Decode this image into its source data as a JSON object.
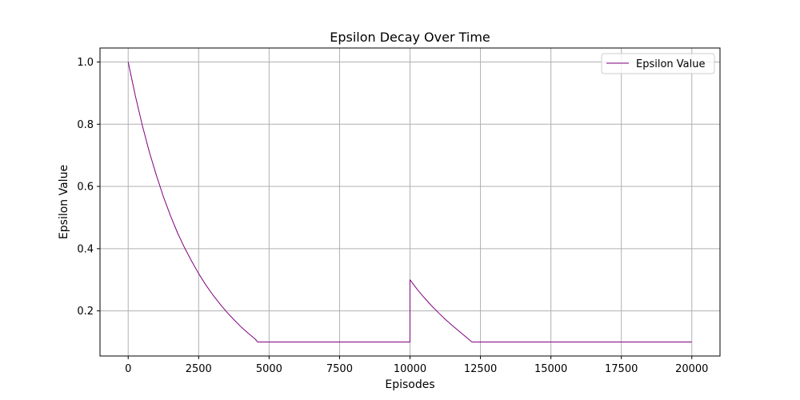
{
  "chart_data": {
    "type": "line",
    "title": "Epsilon Decay Over Time",
    "xlabel": "Episodes",
    "ylabel": "Epsilon Value",
    "xlim": [
      -1000,
      21000
    ],
    "ylim": [
      0.055,
      1.045
    ],
    "xticks": [
      0,
      2500,
      5000,
      7500,
      10000,
      12500,
      15000,
      17500,
      20000
    ],
    "yticks": [
      0.2,
      0.4,
      0.6,
      0.8,
      1.0
    ],
    "xtick_labels": [
      "0",
      "2500",
      "5000",
      "7500",
      "10000",
      "12500",
      "15000",
      "17500",
      "20000"
    ],
    "ytick_labels": [
      "0.2",
      "0.4",
      "0.6",
      "0.8",
      "1.0"
    ],
    "grid": true,
    "legend_position": "top-right",
    "series": [
      {
        "name": "Epsilon Value",
        "color": "#800080",
        "x": [
          0,
          250,
          500,
          750,
          1000,
          1250,
          1500,
          1750,
          2000,
          2250,
          2500,
          2750,
          3000,
          3250,
          3500,
          3750,
          4000,
          4250,
          4500,
          4600,
          5000,
          7500,
          9999,
          10000,
          10250,
          10500,
          10750,
          11000,
          11250,
          11500,
          11750,
          12000,
          12200,
          12500,
          15000,
          17500,
          20000
        ],
        "y": [
          1.0,
          0.893,
          0.797,
          0.711,
          0.636,
          0.567,
          0.506,
          0.451,
          0.403,
          0.36,
          0.32,
          0.284,
          0.252,
          0.223,
          0.196,
          0.172,
          0.149,
          0.129,
          0.11,
          0.1,
          0.1,
          0.1,
          0.1,
          0.3,
          0.27,
          0.243,
          0.218,
          0.195,
          0.173,
          0.153,
          0.134,
          0.115,
          0.1,
          0.1,
          0.1,
          0.1,
          0.1
        ]
      }
    ]
  }
}
